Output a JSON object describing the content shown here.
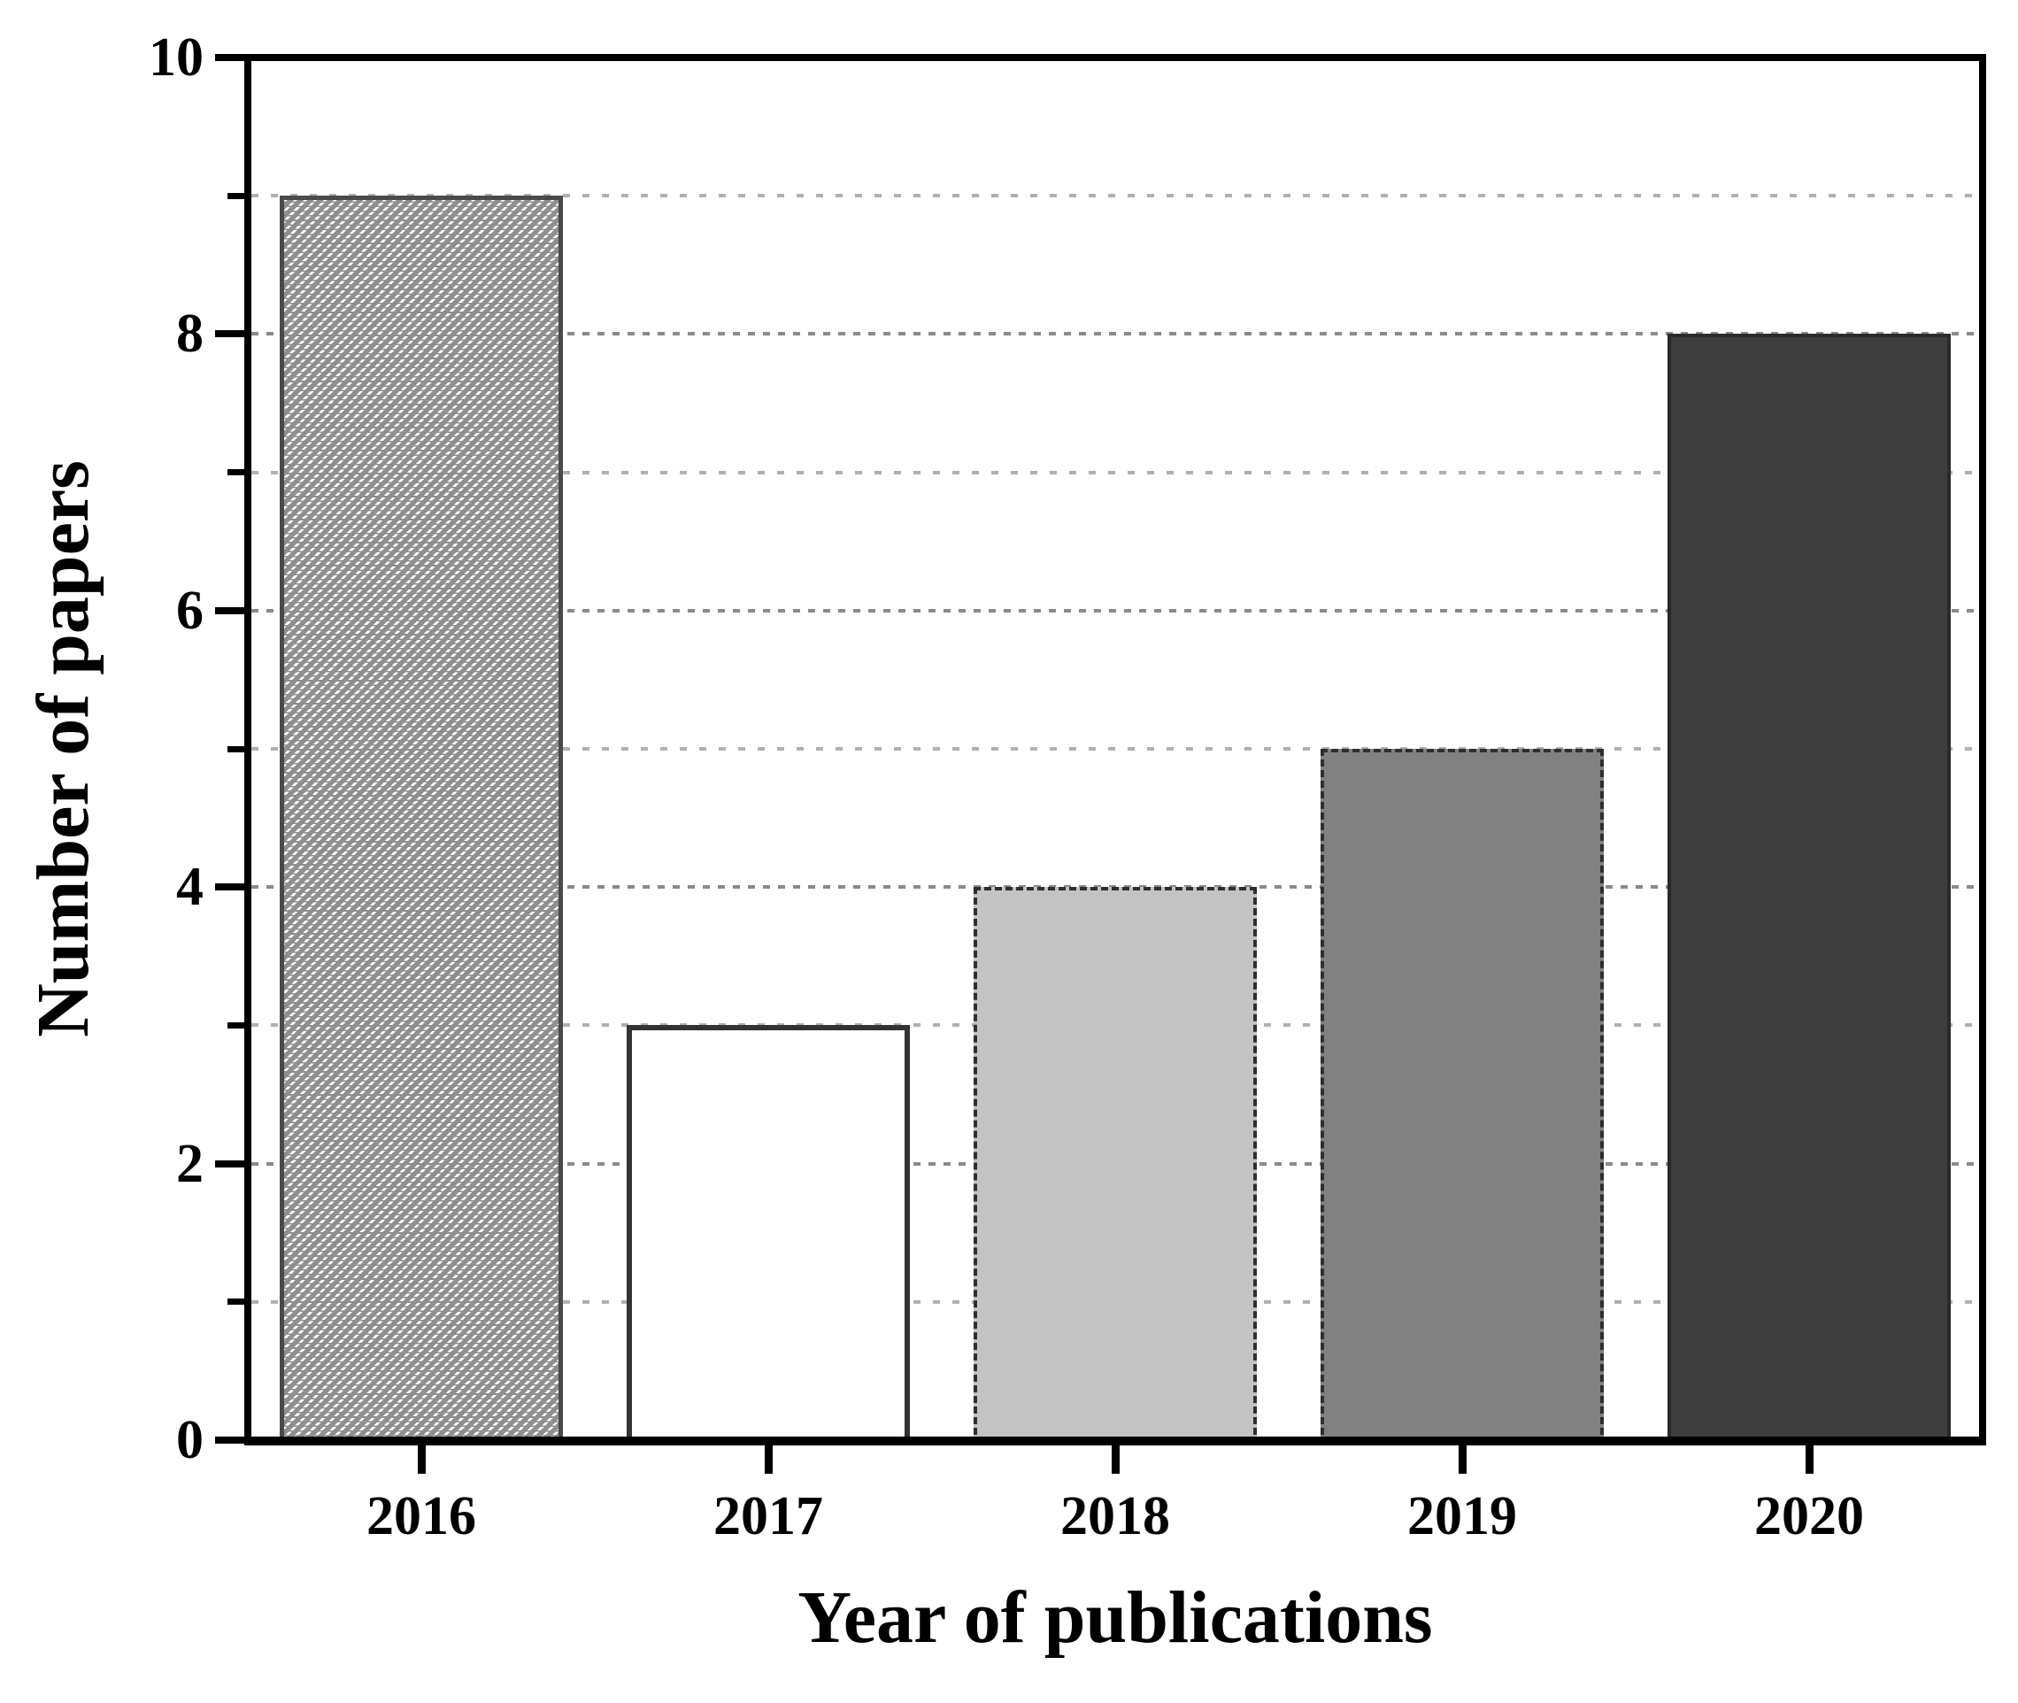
{
  "figure": {
    "background": "#ffffff",
    "text_color": "#000000",
    "axis_color": "#000000"
  },
  "chart_data": {
    "type": "bar",
    "title": "",
    "xlabel": "Year of publications",
    "ylabel": "Number of papers",
    "categories": [
      "2016",
      "2017",
      "2018",
      "2019",
      "2020"
    ],
    "values": [
      9,
      3,
      4,
      5,
      8
    ],
    "ylim": [
      0,
      10
    ],
    "y_major_ticks": [
      0,
      2,
      4,
      6,
      8,
      10
    ],
    "y_minor_ticks": [
      1,
      3,
      5,
      7,
      9
    ],
    "legend_position": "none",
    "grid": {
      "horizontal": true,
      "interval": 1,
      "major_color": "#8a8a8a",
      "minor_color": "#b0b0b0",
      "major_style": "dashed",
      "minor_style": "dash-dot"
    },
    "bar_styles": [
      {
        "category": "2016",
        "fill": "#8f8f8f",
        "hatch": "diagonal-white",
        "border_style": "solid",
        "border_color": "#4a4a4a",
        "border_width": 5
      },
      {
        "category": "2017",
        "fill": "#ffffff",
        "hatch": "none",
        "border_style": "solid",
        "border_color": "#333333",
        "border_width": 6
      },
      {
        "category": "2018",
        "fill": "#c3c3c3",
        "hatch": "none",
        "border_style": "dashdot",
        "border_color": "#2e2e2e",
        "border_width": 4
      },
      {
        "category": "2019",
        "fill": "#818181",
        "hatch": "none",
        "border_style": "dashdot",
        "border_color": "#2e2e2e",
        "border_width": 4
      },
      {
        "category": "2020",
        "fill": "#3d3d3d",
        "hatch": "none",
        "border_style": "solid",
        "border_color": "#2a2a2a",
        "border_width": 4
      }
    ]
  }
}
